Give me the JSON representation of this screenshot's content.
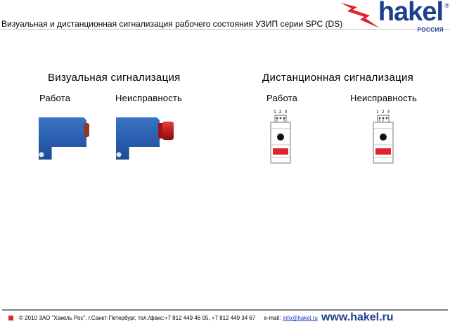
{
  "header": {
    "title": "Визуальная и дистанционная сигнализация рабочего состояния УЗИП серии SPC (DS)"
  },
  "logo": {
    "word": "hakel",
    "sub": "РОССИЯ",
    "reg": "®",
    "brand_color": "#1f3e8c",
    "accent_color": "#e2232a"
  },
  "visual": {
    "heading": "Визуальная сигнализация",
    "work_label": "Работа",
    "fault_label": "Неисправность"
  },
  "remote": {
    "heading": "Дистанционная сигнализация",
    "work_label": "Работа",
    "fault_label": "Неисправность",
    "terminals": "1 2 3"
  },
  "footer": {
    "copyright": "© 2010 ЗАО \"Хакель Рос\", г.Санкт-Петербург, тел./факс:+7 812 449 46 05, +7 812 449 34 67",
    "email_label": "e-mail:",
    "email": "info@hakel.ru",
    "site": "www.hakel.ru"
  }
}
